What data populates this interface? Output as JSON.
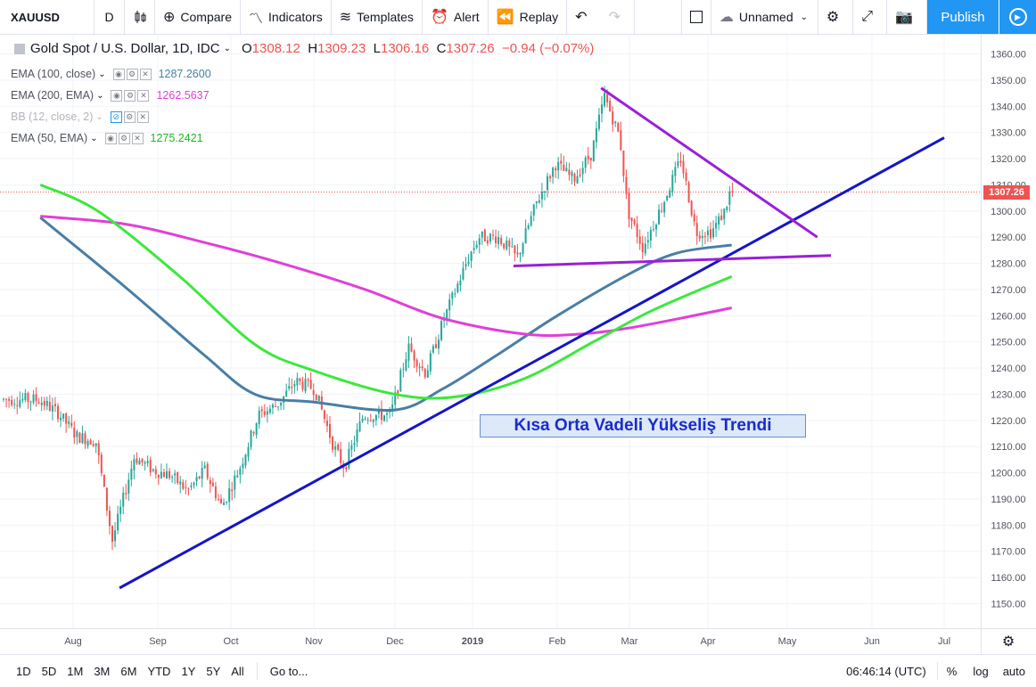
{
  "toolbar": {
    "symbol": "XAUUSD",
    "interval": "D",
    "compare": "Compare",
    "indicators": "Indicators",
    "templates": "Templates",
    "alert": "Alert",
    "replay": "Replay",
    "layout_name": "Unnamed",
    "publish": "Publish"
  },
  "legend": {
    "title": "Gold Spot / U.S. Dollar, 1D, IDC",
    "o_label": "O",
    "o": "1308.12",
    "h_label": "H",
    "h": "1309.23",
    "l_label": "L",
    "l": "1306.16",
    "c_label": "C",
    "c": "1307.26",
    "change": "−0.94 (−0.07%)",
    "indicators": [
      {
        "label": "EMA (100, close)",
        "value": "1287.2600",
        "color": "#4a7ea4"
      },
      {
        "label": "EMA (200, EMA)",
        "value": "1262.5637",
        "color": "#e040d8"
      },
      {
        "label": "BB (12, close, 2)",
        "value": "",
        "color": "#2196f3"
      },
      {
        "label": "EMA (50, EMA)",
        "value": "1275.2421",
        "color": "#3ce83c"
      }
    ]
  },
  "chart_data": {
    "type": "candlestick",
    "x_ticks": [
      "Aug",
      "Sep",
      "Oct",
      "Nov",
      "Dec",
      "2019",
      "Feb",
      "Mar",
      "Apr",
      "May",
      "Jun",
      "Jul"
    ],
    "y_ticks": [
      1150,
      1160,
      1170,
      1180,
      1190,
      1200,
      1210,
      1220,
      1230,
      1240,
      1250,
      1260,
      1270,
      1280,
      1290,
      1300,
      1310,
      1320,
      1330,
      1340,
      1350,
      1360
    ],
    "ylim": [
      1143,
      1365
    ],
    "last_price": "1307.26",
    "annotation": "Kısa Orta Vadeli Yükseliş Trendi",
    "price_path": [
      [
        "2018-07-20",
        1228
      ],
      [
        "2018-07-27",
        1223
      ],
      [
        "2018-08-03",
        1214
      ],
      [
        "2018-08-10",
        1212
      ],
      [
        "2018-08-16",
        1174
      ],
      [
        "2018-08-20",
        1190
      ],
      [
        "2018-08-24",
        1206
      ],
      [
        "2018-08-31",
        1201
      ],
      [
        "2018-09-07",
        1199
      ],
      [
        "2018-09-14",
        1193
      ],
      [
        "2018-09-21",
        1201
      ],
      [
        "2018-09-28",
        1187
      ],
      [
        "2018-10-05",
        1202
      ],
      [
        "2018-10-12",
        1222
      ],
      [
        "2018-10-19",
        1226
      ],
      [
        "2018-10-26",
        1235
      ],
      [
        "2018-11-02",
        1232
      ],
      [
        "2018-11-09",
        1210
      ],
      [
        "2018-11-13",
        1202
      ],
      [
        "2018-11-20",
        1222
      ],
      [
        "2018-11-30",
        1222
      ],
      [
        "2018-12-07",
        1248
      ],
      [
        "2018-12-14",
        1238
      ],
      [
        "2018-12-21",
        1258
      ],
      [
        "2018-12-31",
        1282
      ],
      [
        "2019-01-04",
        1290
      ],
      [
        "2019-01-11",
        1290
      ],
      [
        "2019-01-18",
        1282
      ],
      [
        "2019-01-25",
        1303
      ],
      [
        "2019-02-01",
        1318
      ],
      [
        "2019-02-08",
        1312
      ],
      [
        "2019-02-15",
        1322
      ],
      [
        "2019-02-20",
        1344
      ],
      [
        "2019-02-26",
        1328
      ],
      [
        "2019-03-01",
        1300
      ],
      [
        "2019-03-07",
        1286
      ],
      [
        "2019-03-15",
        1303
      ],
      [
        "2019-03-22",
        1320
      ],
      [
        "2019-03-28",
        1292
      ],
      [
        "2019-04-03",
        1292
      ],
      [
        "2019-04-08",
        1300
      ],
      [
        "2019-04-10",
        1307
      ]
    ],
    "series": [
      {
        "name": "EMA (100, close)",
        "color": "#4a7ea4",
        "points": [
          [
            "2018-07-20",
            1297.5
          ],
          [
            "2018-08-20",
            1271
          ],
          [
            "2018-09-20",
            1245
          ],
          [
            "2018-10-10",
            1230
          ],
          [
            "2018-11-01",
            1227
          ],
          [
            "2018-12-01",
            1224
          ],
          [
            "2018-12-20",
            1232
          ],
          [
            "2019-01-10",
            1245
          ],
          [
            "2019-02-01",
            1260
          ],
          [
            "2019-03-01",
            1276
          ],
          [
            "2019-03-20",
            1284
          ],
          [
            "2019-04-10",
            1287
          ]
        ]
      },
      {
        "name": "EMA (200, EMA)",
        "color": "#e040d8",
        "points": [
          [
            "2018-07-20",
            1298
          ],
          [
            "2018-08-20",
            1295
          ],
          [
            "2018-09-20",
            1288
          ],
          [
            "2018-10-20",
            1280
          ],
          [
            "2018-11-20",
            1270
          ],
          [
            "2018-12-20",
            1259
          ],
          [
            "2019-01-20",
            1253
          ],
          [
            "2019-02-10",
            1253
          ],
          [
            "2019-03-05",
            1256
          ],
          [
            "2019-04-10",
            1263
          ]
        ]
      },
      {
        "name": "EMA (50, EMA)",
        "color": "#3ce83c",
        "points": [
          [
            "2018-07-20",
            1310
          ],
          [
            "2018-08-10",
            1300
          ],
          [
            "2018-09-10",
            1275
          ],
          [
            "2018-10-10",
            1249
          ],
          [
            "2018-11-01",
            1239
          ],
          [
            "2018-12-01",
            1230
          ],
          [
            "2018-12-25",
            1229
          ],
          [
            "2019-01-20",
            1236
          ],
          [
            "2019-02-15",
            1250
          ],
          [
            "2019-03-10",
            1262
          ],
          [
            "2019-04-10",
            1275
          ]
        ]
      }
    ],
    "trendlines": [
      {
        "color": "#1515c8",
        "from": [
          "2018-08-18",
          1156
        ],
        "to": [
          "2019-07-01",
          1328
        ]
      },
      {
        "color": "#9b1fd8",
        "from": [
          "2019-02-18",
          1347
        ],
        "to": [
          "2019-05-12",
          1290
        ]
      },
      {
        "color": "#9b1fd8",
        "from": [
          "2019-01-16",
          1279
        ],
        "to": [
          "2019-05-17",
          1283
        ]
      }
    ]
  },
  "bottom": {
    "ranges": [
      "1D",
      "5D",
      "1M",
      "3M",
      "6M",
      "YTD",
      "1Y",
      "5Y",
      "All"
    ],
    "goto": "Go to...",
    "time": "06:46:14 (UTC)",
    "pct": "%",
    "log": "log",
    "auto": "auto"
  }
}
